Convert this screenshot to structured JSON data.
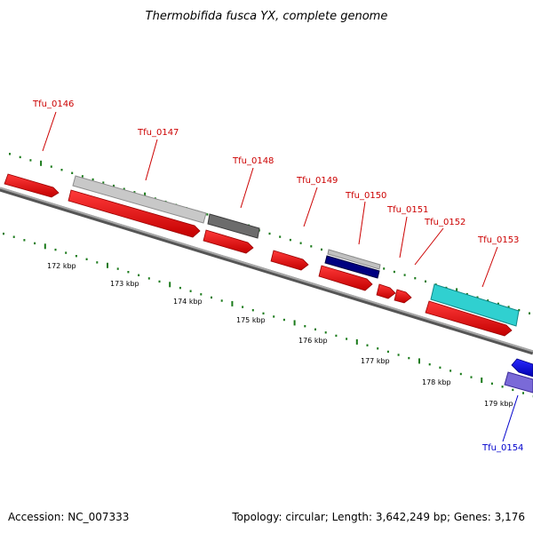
{
  "title": "Thermobifida fusca YX, complete genome",
  "footer": {
    "accession": "Accession: NC_007333",
    "summary": "Topology: circular; Length: 3,642,249 bp; Genes: 3,176"
  },
  "colors": {
    "tick": "#1a7a1a",
    "backbone": "#808080",
    "label_red": "#cc0000",
    "label_blue": "#0000cc"
  },
  "ticks": [
    "172 kbp",
    "173 kbp",
    "174 kbp",
    "175 kbp",
    "176 kbp",
    "177 kbp",
    "178 kbp",
    "179 kbp"
  ],
  "genes": [
    {
      "label": "Tfu_0146",
      "strand": "forward",
      "track": "inner",
      "color": "#ee1111",
      "label_color": "#cc0000"
    },
    {
      "label": "Tfu_0147",
      "strand": "forward",
      "track": "inner",
      "color": "#ee1111",
      "label_color": "#cc0000"
    },
    {
      "label": "Tfu_0148",
      "strand": "forward",
      "track": "inner",
      "color": "#ee1111",
      "label_color": "#cc0000"
    },
    {
      "label": "Tfu_0149",
      "strand": "forward",
      "track": "inner",
      "color": "#ee1111",
      "label_color": "#cc0000"
    },
    {
      "label": "Tfu_0150",
      "strand": "forward",
      "track": "inner",
      "color": "#ee1111",
      "label_color": "#cc0000"
    },
    {
      "label": "Tfu_0151",
      "strand": "forward",
      "track": "inner",
      "color": "#ee1111",
      "label_color": "#cc0000"
    },
    {
      "label": "Tfu_0152",
      "strand": "forward",
      "track": "inner",
      "color": "#ee1111",
      "label_color": "#cc0000"
    },
    {
      "label": "Tfu_0153",
      "strand": "forward",
      "track": "inner",
      "color": "#ee1111",
      "label_color": "#cc0000"
    },
    {
      "label": "Tfu_0154",
      "strand": "reverse",
      "track": "inner",
      "color": "#0000ee",
      "label_color": "#0000cc"
    }
  ],
  "feature_bars": [
    {
      "name": "feature-bar-light-gray",
      "color": "#c0c0c0"
    },
    {
      "name": "feature-bar-dark-gray",
      "color": "#606060"
    },
    {
      "name": "feature-bar-silver",
      "color": "#b8b8b8"
    },
    {
      "name": "feature-bar-navy",
      "color": "#000080"
    },
    {
      "name": "feature-bar-cyan",
      "color": "#22cccc"
    },
    {
      "name": "feature-bar-slate-blue",
      "color": "#6a5acd"
    }
  ]
}
